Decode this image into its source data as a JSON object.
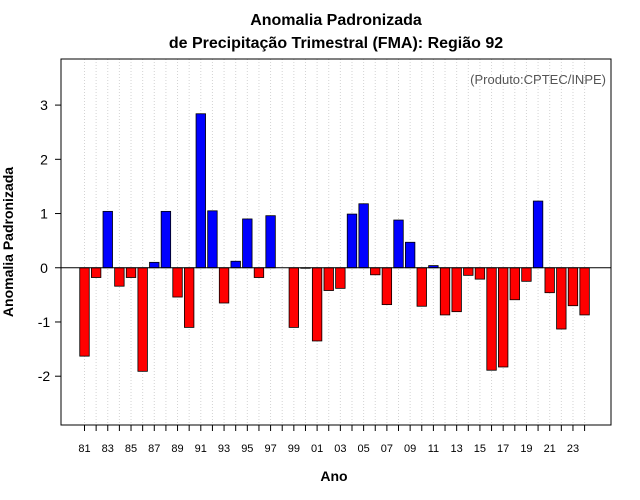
{
  "chart_data": {
    "type": "bar",
    "title": "Anomalia Padronizada",
    "subtitle": "de Precipitação Trimestral (FMA): Região 92",
    "credit": "(Produto:CPTEC/INPE)",
    "xlabel": "Ano",
    "ylabel": "Anomalia Padronizada",
    "ylim": [
      -2.9,
      3.85
    ],
    "yticks": [
      -2,
      -1,
      0,
      1,
      2,
      3
    ],
    "grid": "vertical dotted",
    "x": [
      "1981",
      "1982",
      "1983",
      "1984",
      "1985",
      "1986",
      "1987",
      "1988",
      "1989",
      "1990",
      "1991",
      "1992",
      "1993",
      "1994",
      "1995",
      "1996",
      "1997",
      "1998",
      "1999",
      "2000",
      "2001",
      "2002",
      "2003",
      "2004",
      "2005",
      "2006",
      "2007",
      "2008",
      "2009",
      "2010",
      "2011",
      "2012",
      "2013",
      "2014",
      "2015",
      "2016",
      "2017",
      "2018",
      "2019",
      "2020",
      "2021",
      "2022",
      "2023",
      "2024"
    ],
    "xtick_labels": [
      {
        "index": 0,
        "label": "81"
      },
      {
        "index": 2,
        "label": "83"
      },
      {
        "index": 4,
        "label": "85"
      },
      {
        "index": 6,
        "label": "87"
      },
      {
        "index": 8,
        "label": "89"
      },
      {
        "index": 10,
        "label": "91"
      },
      {
        "index": 12,
        "label": "93"
      },
      {
        "index": 14,
        "label": "95"
      },
      {
        "index": 16,
        "label": "97"
      },
      {
        "index": 18,
        "label": "99"
      },
      {
        "index": 20,
        "label": "01"
      },
      {
        "index": 22,
        "label": "03"
      },
      {
        "index": 24,
        "label": "05"
      },
      {
        "index": 26,
        "label": "07"
      },
      {
        "index": 28,
        "label": "09"
      },
      {
        "index": 30,
        "label": "11"
      },
      {
        "index": 32,
        "label": "13"
      },
      {
        "index": 34,
        "label": "15"
      },
      {
        "index": 36,
        "label": "17"
      },
      {
        "index": 38,
        "label": "19"
      },
      {
        "index": 40,
        "label": "21"
      },
      {
        "index": 42,
        "label": "23"
      }
    ],
    "values": [
      -1.63,
      -0.18,
      1.04,
      -0.34,
      -0.18,
      -1.91,
      0.1,
      1.04,
      -0.54,
      -1.1,
      2.84,
      1.05,
      -0.65,
      0.12,
      0.9,
      -0.18,
      0.96,
      0.0,
      -1.1,
      -0.01,
      -1.35,
      -0.42,
      -0.38,
      0.99,
      1.18,
      -0.13,
      -0.68,
      0.88,
      0.47,
      -0.71,
      0.04,
      -0.87,
      -0.81,
      -0.14,
      -0.21,
      -1.89,
      -1.83,
      -0.59,
      -0.25,
      1.23,
      -0.46,
      -1.13,
      -0.7,
      -0.87
    ],
    "colors": {
      "positive": "#0000ff",
      "negative": "#ff0000",
      "zero_line": "#000000",
      "grid": "#d3d3d3"
    }
  }
}
